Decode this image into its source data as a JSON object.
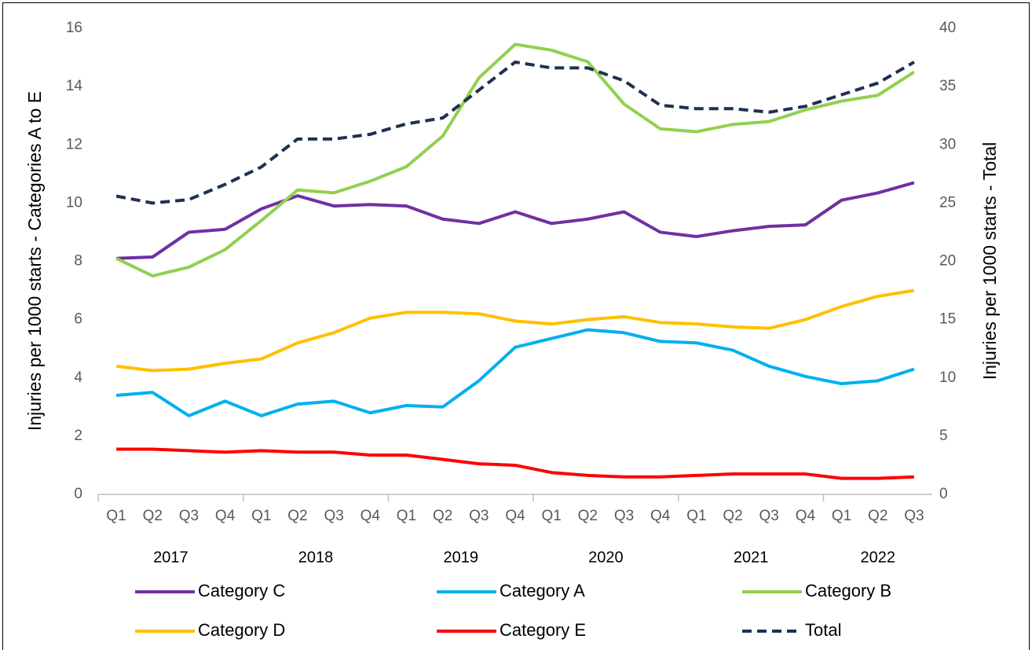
{
  "chart_data": {
    "type": "line",
    "y_label": "Injuries per 1000 starts - Categories A to E",
    "y2_label": "Injuries per 1000 starts - Total",
    "categories": [
      "Q1",
      "Q2",
      "Q3",
      "Q4",
      "Q1",
      "Q2",
      "Q3",
      "Q4",
      "Q1",
      "Q2",
      "Q3",
      "Q4",
      "Q1",
      "Q2",
      "Q3",
      "Q4",
      "Q1",
      "Q2",
      "Q3",
      "Q4",
      "Q1",
      "Q2",
      "Q3"
    ],
    "year_labels": [
      "2017",
      null,
      null,
      null,
      "2018",
      null,
      null,
      null,
      "2019",
      null,
      null,
      null,
      "2020",
      null,
      null,
      null,
      "2021",
      null,
      null,
      null,
      "2022",
      null,
      null
    ],
    "ylim": [
      0,
      16
    ],
    "yticks": [
      0,
      2,
      4,
      6,
      8,
      10,
      12,
      14,
      16
    ],
    "y2lim": [
      0,
      40
    ],
    "y2ticks": [
      0,
      5,
      10,
      15,
      20,
      25,
      30,
      35,
      40
    ],
    "grid": false,
    "legend": "bottom",
    "series": [
      {
        "name": "Category C",
        "color": "#7030a0",
        "style": "solid",
        "values": [
          8.1,
          8.15,
          9.0,
          9.1,
          9.8,
          10.25,
          9.9,
          9.95,
          9.9,
          9.45,
          9.3,
          9.7,
          9.3,
          9.45,
          9.7,
          9.0,
          8.85,
          9.05,
          9.2,
          9.25,
          10.1,
          10.35,
          10.7
        ]
      },
      {
        "name": "Category A",
        "color": "#00b0f0",
        "style": "solid",
        "values": [
          3.4,
          3.5,
          2.7,
          3.2,
          2.7,
          3.1,
          3.2,
          2.8,
          3.05,
          3.0,
          3.9,
          5.05,
          5.35,
          5.65,
          5.55,
          5.25,
          5.2,
          4.95,
          4.4,
          4.05,
          3.8,
          3.9,
          4.3
        ]
      },
      {
        "name": "Category B",
        "color": "#92d050",
        "style": "solid",
        "values": [
          8.1,
          7.5,
          7.8,
          8.4,
          9.4,
          10.45,
          10.35,
          10.75,
          11.25,
          12.3,
          14.3,
          15.45,
          15.25,
          14.85,
          13.4,
          12.55,
          12.45,
          12.7,
          12.8,
          13.2,
          13.5,
          13.7,
          14.5
        ]
      },
      {
        "name": "Category D",
        "color": "#ffc000",
        "style": "solid",
        "values": [
          4.4,
          4.25,
          4.3,
          4.5,
          4.65,
          5.2,
          5.55,
          6.05,
          6.25,
          6.25,
          6.2,
          5.95,
          5.85,
          6.0,
          6.1,
          5.9,
          5.85,
          5.75,
          5.7,
          6.0,
          6.45,
          6.8,
          7.0
        ]
      },
      {
        "name": "Category E",
        "color": "#ff0000",
        "style": "solid",
        "values": [
          1.55,
          1.55,
          1.5,
          1.45,
          1.5,
          1.45,
          1.45,
          1.35,
          1.35,
          1.2,
          1.05,
          1.0,
          0.75,
          0.65,
          0.6,
          0.6,
          0.65,
          0.7,
          0.7,
          0.7,
          0.55,
          0.55,
          0.6
        ]
      },
      {
        "name": "Total",
        "color": "#1f3050",
        "style": "dashed",
        "axis": "y2",
        "values": [
          25.6,
          25.0,
          25.3,
          26.6,
          28.1,
          30.5,
          30.5,
          30.9,
          31.8,
          32.3,
          34.7,
          37.1,
          36.6,
          36.6,
          35.5,
          33.4,
          33.1,
          33.1,
          32.8,
          33.3,
          34.3,
          35.3,
          37.1
        ]
      }
    ]
  }
}
